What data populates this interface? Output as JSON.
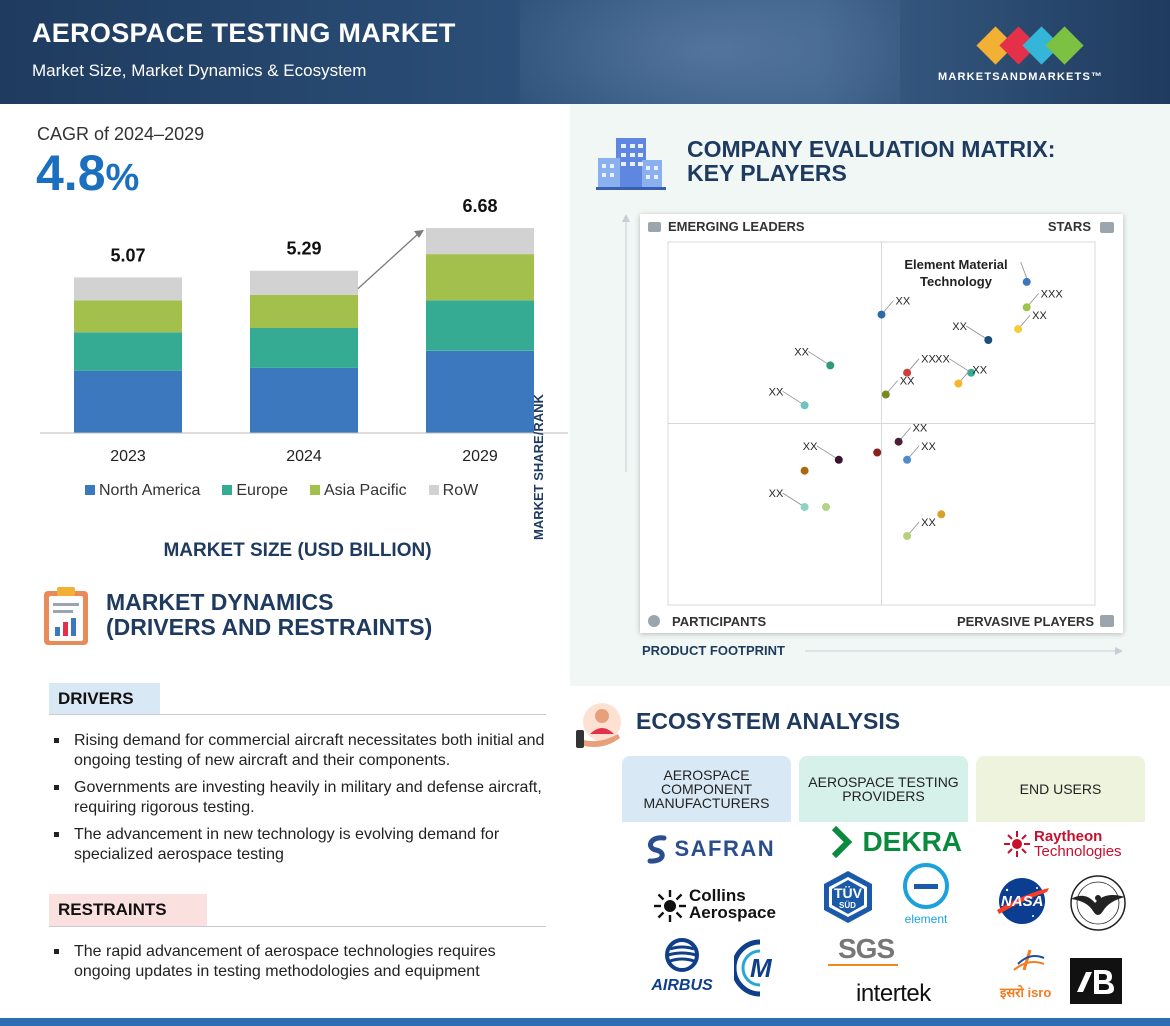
{
  "header": {
    "title": "AEROSPACE TESTING MARKET",
    "subtitle": "Market Size, Market Dynamics & Ecosystem",
    "brand": "MARKETSANDMARKETS™",
    "brand_colors": [
      "#f2b035",
      "#e5304a",
      "#34b6d9",
      "#7cc142"
    ]
  },
  "cagr": {
    "label": "CAGR of 2024–2029",
    "value": "4.8",
    "unit": "%"
  },
  "chart_data": {
    "type": "bar",
    "stacked": true,
    "categories": [
      "2023",
      "2024",
      "2029"
    ],
    "totals": [
      "5.07",
      "5.29",
      "6.68"
    ],
    "series": [
      {
        "name": "North America",
        "color": "#3b78bd",
        "values": [
          2.03,
          2.12,
          2.68
        ]
      },
      {
        "name": "Europe",
        "color": "#36ab94",
        "values": [
          1.25,
          1.3,
          1.64
        ]
      },
      {
        "name": "Asia Pacific",
        "color": "#a3c04d",
        "values": [
          1.04,
          1.08,
          1.51
        ]
      },
      {
        "name": "RoW",
        "color": "#d2d2d2",
        "values": [
          0.75,
          0.79,
          0.85
        ]
      }
    ],
    "ylim": [
      0,
      6.68
    ],
    "legend_position": "bottom",
    "xlabel": "MARKET SIZE (USD BILLION)",
    "grid": false
  },
  "market_dynamics": {
    "title_line1": "MARKET DYNAMICS",
    "title_line2": "(DRIVERS AND RESTRAINTS)",
    "drivers_label": "DRIVERS",
    "drivers": [
      "Rising demand for commercial aircraft necessitates both initial and ongoing testing of new aircraft and their components.",
      "Governments are investing heavily in military and defense aircraft, requiring rigorous testing.",
      "The advancement in new technology is evolving demand for specialized aerospace testing"
    ],
    "restraints_label": "RESTRAINTS",
    "restraints": [
      "The rapid advancement of aerospace technologies requires ongoing updates in testing methodologies and equipment"
    ]
  },
  "matrix": {
    "title_line1": "COMPANY EVALUATION MATRIX:",
    "title_line2": "KEY PLAYERS",
    "quadrants": {
      "top_left": "EMERGING LEADERS",
      "top_right": "STARS",
      "bottom_left": "PARTICIPANTS",
      "bottom_right": "PERVASIVE PLAYERS"
    },
    "y_axis": "MARKET SHARE/RANK",
    "x_axis": "PRODUCT FOOTPRINT",
    "highlight_label": "Element Material Technology",
    "points": [
      {
        "x": 0.5,
        "y": 0.8,
        "c": "#2e6aa8",
        "label": "XX"
      },
      {
        "x": 0.38,
        "y": 0.66,
        "c": "#2e9a79",
        "label": "XX"
      },
      {
        "x": 0.51,
        "y": 0.58,
        "c": "#7a8a22",
        "label": "XX"
      },
      {
        "x": 0.32,
        "y": 0.55,
        "c": "#6cc4bd",
        "label": "XX"
      },
      {
        "x": 0.75,
        "y": 0.73,
        "c": "#1e4e78",
        "label": "XX"
      },
      {
        "x": 0.84,
        "y": 0.89,
        "c": "#3b78bd",
        "label": ""
      },
      {
        "x": 0.84,
        "y": 0.82,
        "c": "#9cc44d",
        "label": "XXX"
      },
      {
        "x": 0.82,
        "y": 0.76,
        "c": "#f3cd3a",
        "label": "XX"
      },
      {
        "x": 0.56,
        "y": 0.64,
        "c": "#d33d3d",
        "label": "XX"
      },
      {
        "x": 0.71,
        "y": 0.64,
        "c": "#36ab94",
        "label": "XX"
      },
      {
        "x": 0.68,
        "y": 0.61,
        "c": "#f3b52a",
        "label": "XX"
      },
      {
        "x": 0.54,
        "y": 0.45,
        "c": "#4a1f3a",
        "label": "XX"
      },
      {
        "x": 0.49,
        "y": 0.42,
        "c": "#8b2020",
        "label": ""
      },
      {
        "x": 0.56,
        "y": 0.4,
        "c": "#4f8cce",
        "label": "XX"
      },
      {
        "x": 0.4,
        "y": 0.4,
        "c": "#3a1530",
        "label": "XX"
      },
      {
        "x": 0.32,
        "y": 0.37,
        "c": "#a86a10",
        "label": ""
      },
      {
        "x": 0.32,
        "y": 0.27,
        "c": "#8fd3c8",
        "label": "XX"
      },
      {
        "x": 0.37,
        "y": 0.27,
        "c": "#b3d48a",
        "label": ""
      },
      {
        "x": 0.64,
        "y": 0.25,
        "c": "#d9a12a",
        "label": ""
      },
      {
        "x": 0.56,
        "y": 0.19,
        "c": "#b8cf7c",
        "label": "XX"
      }
    ]
  },
  "ecosystem": {
    "title": "ECOSYSTEM ANALYSIS",
    "columns": [
      {
        "header": "AEROSPACE COMPONENT MANUFACTURERS",
        "color": "#d8e8f5"
      },
      {
        "header": "AEROSPACE TESTING PROVIDERS",
        "color": "#d6f0ea"
      },
      {
        "header": "END USERS",
        "color": "#eef3de"
      }
    ],
    "logos": {
      "safran": "SAFRAN",
      "collins_1": "Collins",
      "collins_2": "Aerospace",
      "airbus": "AIRBUS",
      "moog": "M",
      "dekra": "DEKRA",
      "tuv_1": "TÜV",
      "tuv_2": "SÜD",
      "element": "element",
      "sgs": "SGS",
      "intertek": "intertek",
      "raytheon_1": "Raytheon",
      "raytheon_2": "Technologies",
      "nasa": "NASA",
      "isro": "इसरो isro"
    }
  }
}
